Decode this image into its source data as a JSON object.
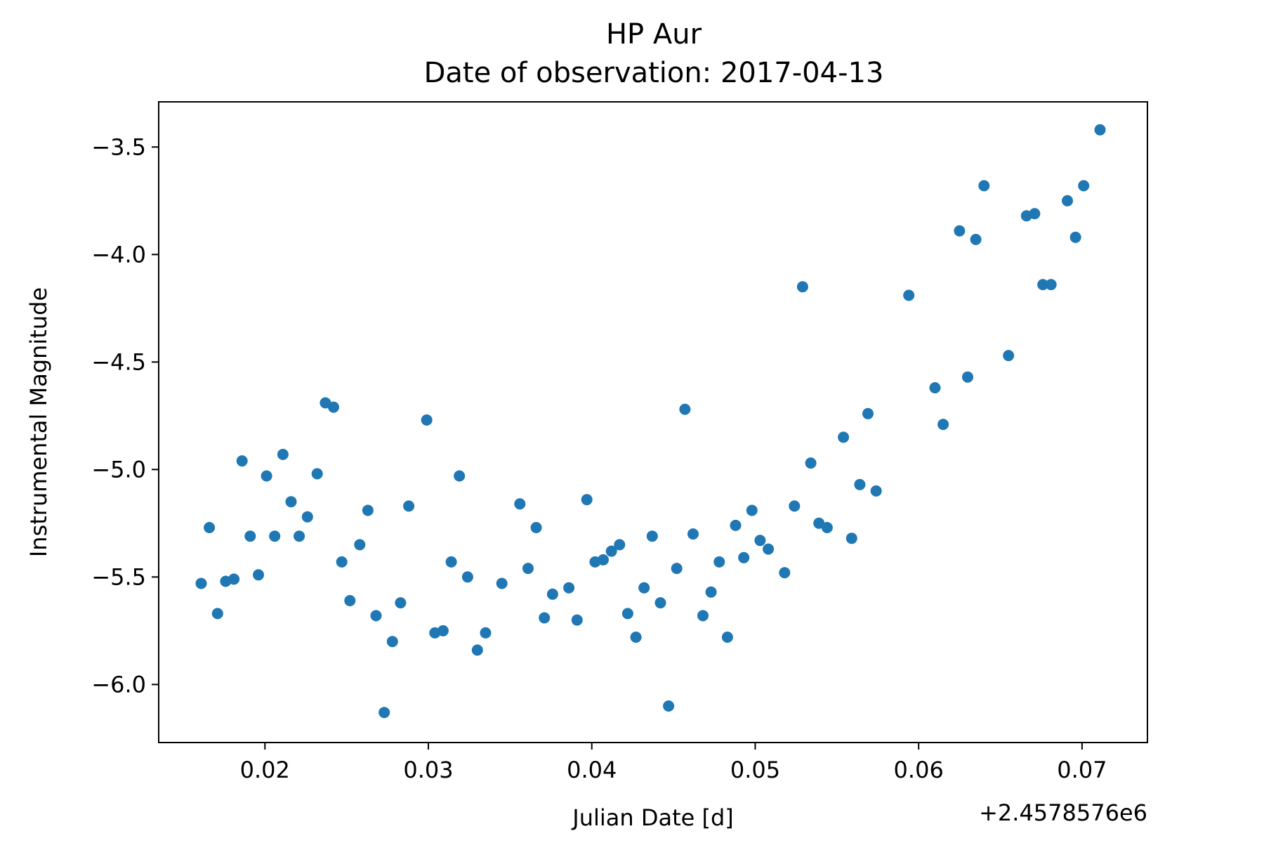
{
  "chart_data": {
    "type": "scatter",
    "title": "HP Aur",
    "subtitle": "Date of observation: 2017-04-13",
    "xlabel": "Julian Date [d]",
    "ylabel": "Instrumental Magnitude",
    "x_offset_label": "+2.4578576e6",
    "xlim": [
      0.0135,
      0.074
    ],
    "ylim": [
      -6.27,
      -3.29
    ],
    "x_ticks": [
      0.02,
      0.03,
      0.04,
      0.05,
      0.06,
      0.07
    ],
    "x_tick_labels": [
      "0.02",
      "0.03",
      "0.04",
      "0.05",
      "0.06",
      "0.07"
    ],
    "y_ticks": [
      -3.5,
      -4.0,
      -4.5,
      -5.0,
      -5.5,
      -6.0
    ],
    "y_tick_labels": [
      "−3.5",
      "−4.0",
      "−4.5",
      "−5.0",
      "−5.5",
      "−6.0"
    ],
    "grid": false,
    "marker_color": "#1f77b4",
    "points": [
      [
        0.0161,
        -5.53
      ],
      [
        0.0166,
        -5.27
      ],
      [
        0.0171,
        -5.67
      ],
      [
        0.0176,
        -5.52
      ],
      [
        0.0181,
        -5.51
      ],
      [
        0.0186,
        -4.96
      ],
      [
        0.0191,
        -5.31
      ],
      [
        0.0196,
        -5.49
      ],
      [
        0.0201,
        -5.03
      ],
      [
        0.0206,
        -5.31
      ],
      [
        0.0211,
        -4.93
      ],
      [
        0.0216,
        -5.15
      ],
      [
        0.0221,
        -5.31
      ],
      [
        0.0226,
        -5.22
      ],
      [
        0.0232,
        -5.02
      ],
      [
        0.0237,
        -4.69
      ],
      [
        0.0242,
        -4.71
      ],
      [
        0.0247,
        -5.43
      ],
      [
        0.0252,
        -5.61
      ],
      [
        0.0258,
        -5.35
      ],
      [
        0.0263,
        -5.19
      ],
      [
        0.0268,
        -5.68
      ],
      [
        0.0273,
        -6.13
      ],
      [
        0.0278,
        -5.8
      ],
      [
        0.0283,
        -5.62
      ],
      [
        0.0288,
        -5.17
      ],
      [
        0.0299,
        -4.77
      ],
      [
        0.0304,
        -5.76
      ],
      [
        0.0309,
        -5.75
      ],
      [
        0.0314,
        -5.43
      ],
      [
        0.0319,
        -5.03
      ],
      [
        0.0324,
        -5.5
      ],
      [
        0.033,
        -5.84
      ],
      [
        0.0335,
        -5.76
      ],
      [
        0.0345,
        -5.53
      ],
      [
        0.0356,
        -5.16
      ],
      [
        0.0361,
        -5.46
      ],
      [
        0.0366,
        -5.27
      ],
      [
        0.0371,
        -5.69
      ],
      [
        0.0376,
        -5.58
      ],
      [
        0.0386,
        -5.55
      ],
      [
        0.0391,
        -5.7
      ],
      [
        0.0397,
        -5.14
      ],
      [
        0.0402,
        -5.43
      ],
      [
        0.0407,
        -5.42
      ],
      [
        0.0412,
        -5.38
      ],
      [
        0.0417,
        -5.35
      ],
      [
        0.0422,
        -5.67
      ],
      [
        0.0427,
        -5.78
      ],
      [
        0.0432,
        -5.55
      ],
      [
        0.0437,
        -5.31
      ],
      [
        0.0442,
        -5.62
      ],
      [
        0.0447,
        -6.1
      ],
      [
        0.0452,
        -5.46
      ],
      [
        0.0457,
        -4.72
      ],
      [
        0.0462,
        -5.3
      ],
      [
        0.0468,
        -5.68
      ],
      [
        0.0473,
        -5.57
      ],
      [
        0.0478,
        -5.43
      ],
      [
        0.0483,
        -5.78
      ],
      [
        0.0488,
        -5.26
      ],
      [
        0.0493,
        -5.41
      ],
      [
        0.0498,
        -5.19
      ],
      [
        0.0503,
        -5.33
      ],
      [
        0.0508,
        -5.37
      ],
      [
        0.0518,
        -5.48
      ],
      [
        0.0524,
        -5.17
      ],
      [
        0.0529,
        -4.15
      ],
      [
        0.0534,
        -4.97
      ],
      [
        0.0539,
        -5.25
      ],
      [
        0.0544,
        -5.27
      ],
      [
        0.0554,
        -4.85
      ],
      [
        0.0559,
        -5.32
      ],
      [
        0.0564,
        -5.07
      ],
      [
        0.0569,
        -4.74
      ],
      [
        0.0574,
        -5.1
      ],
      [
        0.0594,
        -4.19
      ],
      [
        0.061,
        -4.62
      ],
      [
        0.0615,
        -4.79
      ],
      [
        0.0625,
        -3.89
      ],
      [
        0.063,
        -4.57
      ],
      [
        0.0635,
        -3.93
      ],
      [
        0.064,
        -3.68
      ],
      [
        0.0655,
        -4.47
      ],
      [
        0.0666,
        -3.82
      ],
      [
        0.0671,
        -3.81
      ],
      [
        0.0676,
        -4.14
      ],
      [
        0.0681,
        -4.14
      ],
      [
        0.0691,
        -3.75
      ],
      [
        0.0696,
        -3.92
      ],
      [
        0.0701,
        -3.68
      ],
      [
        0.0711,
        -3.42
      ]
    ]
  }
}
